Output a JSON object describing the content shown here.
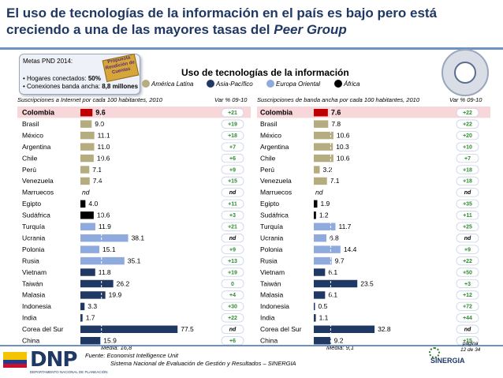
{
  "header": {
    "title_part1": "El uso de tecnologías de la información en el país es bajo pero está creciendo a una de las mayores tasas del ",
    "title_part2": "Peer Group"
  },
  "meta_box": {
    "title": "Metas PND 2014:",
    "line1_label": "• Hogares conectados: ",
    "line1_value": "50%",
    "line2_label": "• Conexiones banda ancha: ",
    "line2_value": "8,8 millones",
    "stamp": "Propuesta Rendición de Cuentas"
  },
  "chart_title": "Uso de tecnologías de la información",
  "legend": [
    {
      "label": "América Latina",
      "color": "#b5ad7f"
    },
    {
      "label": "Asia-Pacífico",
      "color": "#1f3864"
    },
    {
      "label": "Europa Oriental",
      "color": "#8faadc"
    },
    {
      "label": "África",
      "color": "#000000"
    }
  ],
  "footer": {
    "source_label": "Fuente:",
    "source1": "Economist Intelligence Unit",
    "source2": "Sistema Nacional de Evaluación de Gestión y Resultados – SINERGIA",
    "page": "página",
    "page_of": "12 de 34",
    "logo_dnp": "DNP",
    "logo_dnp_sub": "DEPARTAMENTO NACIONAL DE PLANEACIÓN",
    "logo_sinergia": "SINERGIA"
  },
  "chart_data": [
    {
      "type": "bar",
      "title": "Suscripciones a Internet por cada 100 habitantes, 2010",
      "var_header": "Var % 09-10",
      "median_label": "Media: 16,8",
      "median": 16.8,
      "xlim": [
        0,
        80
      ],
      "categories": [
        "Colombia",
        "Brasil",
        "México",
        "Argentina",
        "Chile",
        "Perú",
        "Venezuela",
        "Marruecos",
        "Egipto",
        "Sudáfrica",
        "Turquía",
        "Ucrania",
        "Polonia",
        "Rusia",
        "Vietnam",
        "Taiwán",
        "Malasia",
        "Indonesia",
        "India",
        "Corea del Sur",
        "China"
      ],
      "regions": [
        "latam",
        "latam",
        "latam",
        "latam",
        "latam",
        "latam",
        "latam",
        "africa",
        "africa",
        "africa",
        "europe",
        "europe",
        "europe",
        "europe",
        "asia",
        "asia",
        "asia",
        "asia",
        "asia",
        "asia",
        "asia"
      ],
      "values": [
        9.6,
        9.0,
        11.1,
        11.0,
        10.6,
        7.1,
        7.4,
        null,
        4.0,
        10.6,
        11.9,
        38.1,
        15.1,
        35.1,
        11.8,
        26.2,
        19.9,
        3.3,
        1.7,
        77.5,
        15.9
      ],
      "labels": [
        "9.6",
        "9.0",
        "11.1",
        "11.0",
        "10.6",
        "7.1",
        "7.4",
        "nd",
        "4.0",
        "10.6",
        "11.9",
        "38.1",
        "15.1",
        "35.1",
        "11.8",
        "26.2",
        "19.9",
        "3.3",
        "1.7",
        "77.5",
        "15.9"
      ],
      "var": [
        "+21",
        "+19",
        "+18",
        "+7",
        "+6",
        "+9",
        "+15",
        "nd",
        "+11",
        "+3",
        "+21",
        "nd",
        "+9",
        "+13",
        "+19",
        "0",
        "+4",
        "+30",
        "+22",
        "nd",
        "+6"
      ]
    },
    {
      "type": "bar",
      "title": "Suscripciones de banda ancha por cada 100 habitantes, 2010",
      "var_header": "Var % 09-10",
      "median_label": "Media: 9,1",
      "median": 9.1,
      "xlim": [
        0,
        80
      ],
      "categories": [
        "Colombia",
        "Brasil",
        "México",
        "Argentina",
        "Chile",
        "Perú",
        "Venezuela",
        "Marruecos",
        "Egipto",
        "Sudáfrica",
        "Turquía",
        "Ucrania",
        "Polonia",
        "Rusia",
        "Vietnam",
        "Taiwán",
        "Malasia",
        "Indonesia",
        "India",
        "Corea del Sur",
        "China"
      ],
      "regions": [
        "latam",
        "latam",
        "latam",
        "latam",
        "latam",
        "latam",
        "latam",
        "africa",
        "africa",
        "africa",
        "europe",
        "europe",
        "europe",
        "europe",
        "asia",
        "asia",
        "asia",
        "asia",
        "asia",
        "asia",
        "asia"
      ],
      "values": [
        7.6,
        7.8,
        10.6,
        10.3,
        10.6,
        3.2,
        7.1,
        null,
        1.9,
        1.2,
        11.7,
        6.8,
        14.4,
        9.7,
        6.1,
        23.5,
        6.1,
        0.5,
        1.1,
        32.8,
        9.2
      ],
      "labels": [
        "7.6",
        "7.8",
        "10.6",
        "10.3",
        "10.6",
        "3.2",
        "7.1",
        "nd",
        "1.9",
        "1.2",
        "11.7",
        "6.8",
        "14.4",
        "9.7",
        "6.1",
        "23.5",
        "6.1",
        "0.5",
        "1.1",
        "32.8",
        "9.2"
      ],
      "var": [
        "+22",
        "+22",
        "+20",
        "+10",
        "+7",
        "+18",
        "+18",
        "nd",
        "+35",
        "+11",
        "+25",
        "nd",
        "+9",
        "+22",
        "+50",
        "+3",
        "+12",
        "+72",
        "+44",
        "nd",
        "+15"
      ]
    }
  ]
}
